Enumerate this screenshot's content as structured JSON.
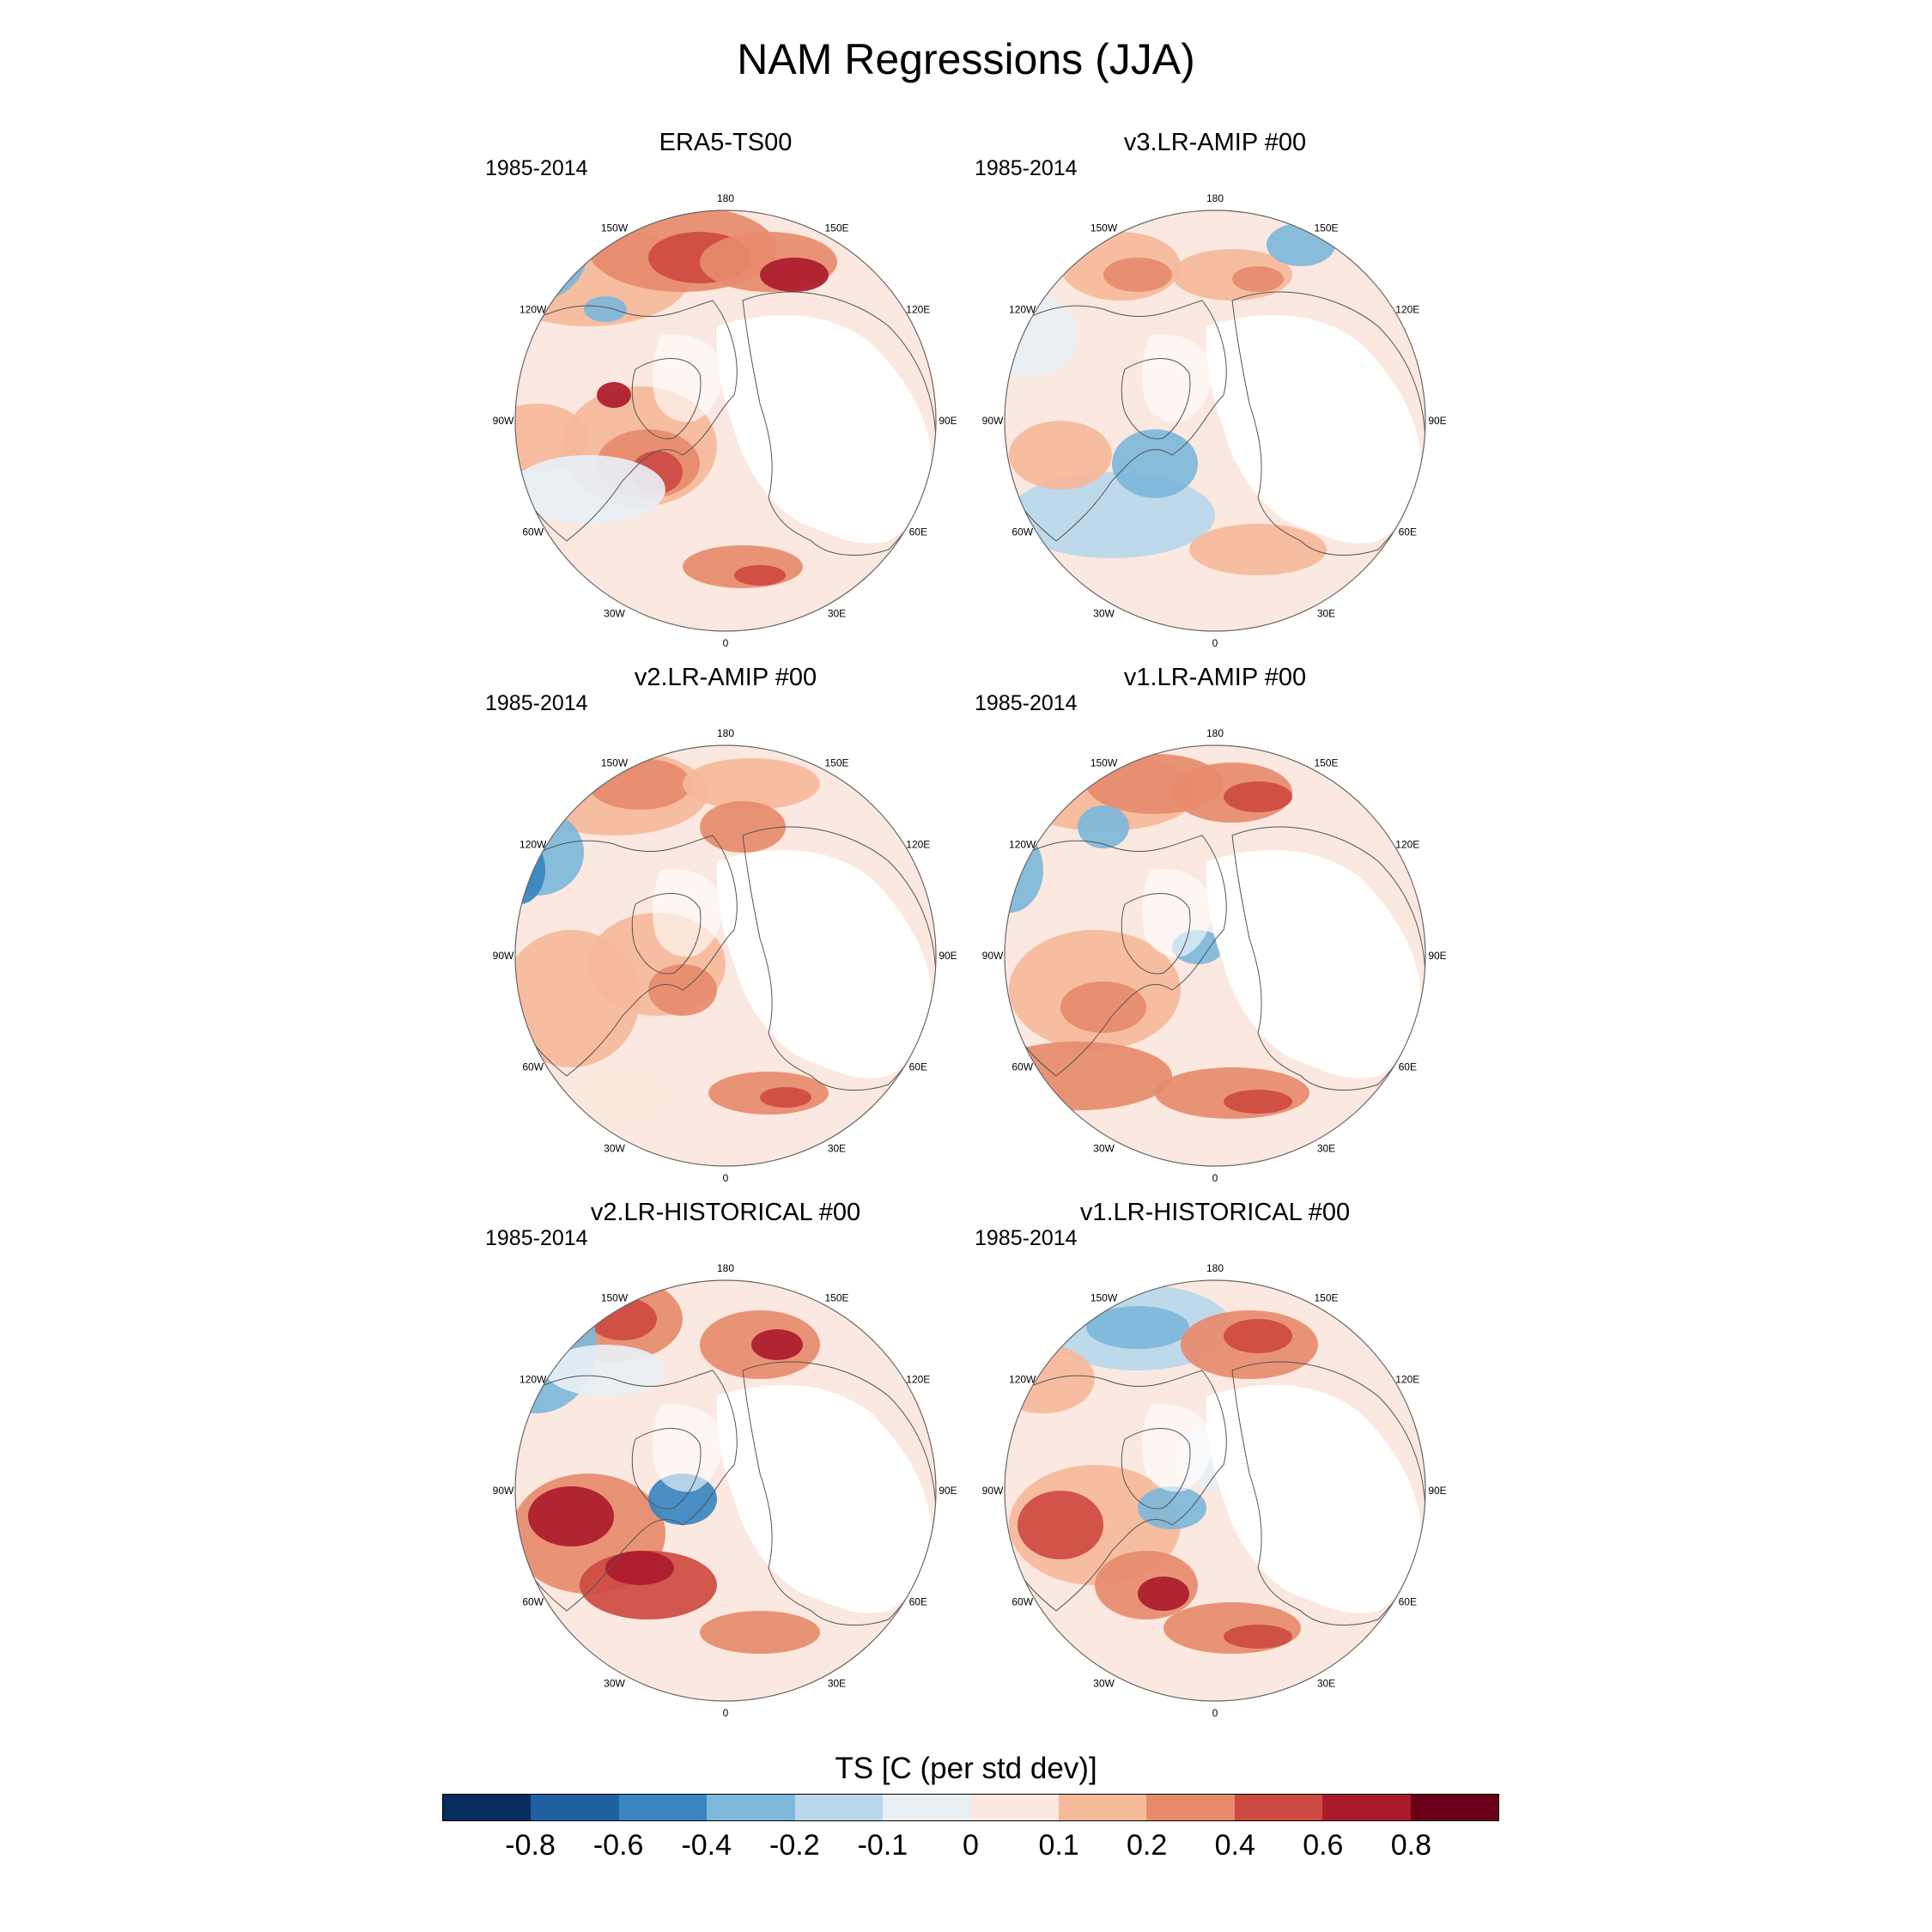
{
  "title": "NAM Regressions (JJA)",
  "panels": [
    {
      "title": "ERA5-TS00",
      "period": "1985-2014",
      "pattern": "era5"
    },
    {
      "title": "v3.LR-AMIP  #00",
      "period": "1985-2014",
      "pattern": "v3amip"
    },
    {
      "title": "v2.LR-AMIP  #00",
      "period": "1985-2014",
      "pattern": "v2amip"
    },
    {
      "title": "v1.LR-AMIP  #00",
      "period": "1985-2014",
      "pattern": "v1amip"
    },
    {
      "title": "v2.LR-HISTORICAL  #00",
      "period": "1985-2014",
      "pattern": "v2hist"
    },
    {
      "title": "v1.LR-HISTORICAL  #00",
      "period": "1985-2014",
      "pattern": "v1hist"
    }
  ],
  "longitude_labels": [
    "180",
    "150E",
    "120E",
    "90E",
    "60E",
    "30E",
    "0",
    "30W",
    "60W",
    "90W",
    "120W",
    "150W"
  ],
  "colorbar": {
    "title": "TS [C (per std dev)]",
    "labels": [
      "-0.8",
      "-0.6",
      "-0.4",
      "-0.2",
      "-0.1",
      "0",
      "0.1",
      "0.2",
      "0.4",
      "0.6",
      "0.8"
    ],
    "colors": [
      "#062d5e",
      "#1f60a3",
      "#3a85c1",
      "#7db7da",
      "#b9d7ea",
      "#e8eff5",
      "#fbe8e0",
      "#f6b99a",
      "#e78b6c",
      "#cd4a42",
      "#ab1a2c",
      "#6b0119"
    ]
  }
}
